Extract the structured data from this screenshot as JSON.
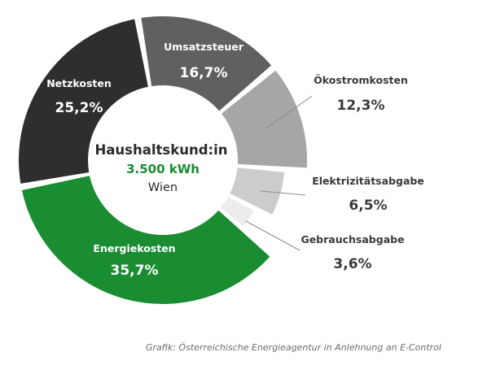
{
  "chart_data": {
    "type": "pie",
    "donut": true,
    "categories": [
      "Umsatzsteuer",
      "Ökostromkosten",
      "Elektrizitätsabgabe",
      "Gebrauchsabgabe",
      "Energiekosten",
      "Netzkosten"
    ],
    "values": [
      16.7,
      12.3,
      6.5,
      3.6,
      35.7,
      25.2
    ],
    "value_labels": [
      "16,7%",
      "12,3%",
      "6,5%",
      "3,6%",
      "35,7%",
      "25,2%"
    ],
    "colors": [
      "#606060",
      "#a6a6a6",
      "#cccccc",
      "#ececec",
      "#1a8c32",
      "#2e2e2e"
    ],
    "center": {
      "title": "Haushaltskund:in",
      "value": "3.500 kWh",
      "subtitle": "Wien",
      "value_color": "#1a8c32"
    }
  },
  "credit": "Grafik: Österreichische Energieagentur in Anlehnung an E-Control"
}
